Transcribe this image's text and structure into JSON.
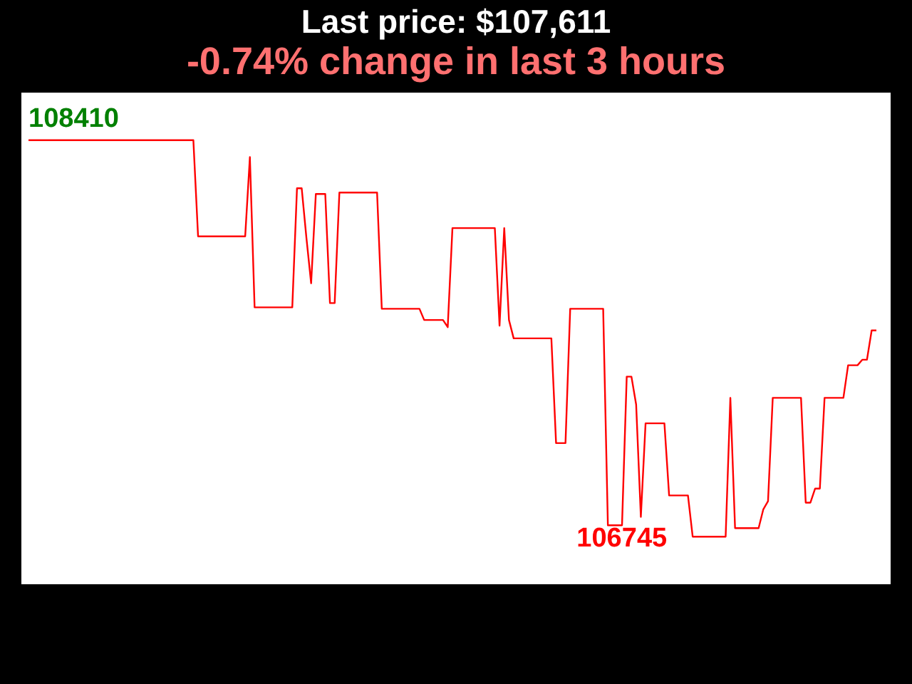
{
  "chart_data": {
    "type": "line",
    "title": "Last price: $107,611",
    "subtitle": "-0.74% change in last 3 hours",
    "categories": [
      null,
      null,
      null,
      null,
      null,
      null,
      null,
      null,
      null,
      null,
      null,
      null,
      null,
      null,
      null,
      null,
      null,
      null,
      null,
      null,
      null,
      null,
      null,
      null,
      null,
      null,
      null,
      null,
      null,
      null,
      null,
      null,
      null,
      null,
      null,
      null,
      null,
      null,
      null,
      null,
      null,
      null,
      null,
      null,
      null,
      null,
      null,
      null,
      null,
      null,
      null,
      null,
      null,
      null,
      null,
      null,
      null,
      null,
      null,
      null,
      null,
      null,
      null,
      null,
      null,
      null,
      null,
      null,
      null,
      null,
      null,
      null,
      null,
      null,
      null,
      null,
      null,
      null,
      null,
      null,
      null,
      null,
      null,
      null,
      null,
      null,
      null,
      null,
      null,
      null,
      null,
      null,
      null,
      null,
      null,
      null,
      null,
      null,
      null,
      null,
      null,
      null,
      null,
      null,
      null,
      null,
      null,
      null,
      null,
      null,
      null,
      null,
      null,
      null,
      null,
      null,
      null,
      null,
      null,
      null,
      null,
      null,
      null,
      null,
      null,
      null,
      null,
      null,
      null,
      null,
      null,
      null,
      null,
      null,
      null,
      null,
      null,
      null,
      null,
      null,
      null,
      null,
      null,
      null,
      null,
      null,
      null,
      null,
      null,
      null,
      null,
      null,
      null,
      null,
      null,
      null,
      null,
      null,
      null,
      null,
      null,
      null,
      null,
      null,
      null,
      null,
      null,
      null,
      null,
      null,
      null,
      null,
      null,
      null,
      null,
      null,
      null,
      null,
      null,
      null,
      null
    ],
    "series": [
      {
        "color": "#ff0000",
        "values": [
          108410,
          108410,
          108410,
          108410,
          108410,
          108410,
          108410,
          108410,
          108410,
          108410,
          108410,
          108410,
          108410,
          108410,
          108410,
          108410,
          108410,
          108410,
          108410,
          108410,
          108410,
          108410,
          108410,
          108410,
          108410,
          108410,
          108410,
          108410,
          108410,
          108410,
          108410,
          108410,
          108410,
          108410,
          108410,
          108410,
          108006,
          108006,
          108006,
          108006,
          108006,
          108006,
          108006,
          108006,
          108006,
          108006,
          108006,
          108339,
          107708,
          107708,
          107708,
          107708,
          107708,
          107708,
          107708,
          107708,
          107708,
          108208,
          108208,
          108000,
          107809,
          108184,
          108184,
          108184,
          107726,
          107726,
          108190,
          108190,
          108190,
          108190,
          108190,
          108190,
          108190,
          108190,
          108190,
          107702,
          107702,
          107702,
          107702,
          107702,
          107702,
          107702,
          107702,
          107702,
          107655,
          107655,
          107655,
          107655,
          107655,
          107625,
          108041,
          108041,
          108041,
          108041,
          108041,
          108041,
          108041,
          108041,
          108041,
          108041,
          107631,
          108041,
          107655,
          107578,
          107578,
          107578,
          107578,
          107578,
          107578,
          107578,
          107578,
          107578,
          107138,
          107138,
          107138,
          107702,
          107702,
          107702,
          107702,
          107702,
          107702,
          107702,
          107702,
          106793,
          106793,
          106793,
          106793,
          107417,
          107417,
          107300,
          106828,
          107221,
          107221,
          107221,
          107221,
          107221,
          106918,
          106918,
          106918,
          106918,
          106918,
          106745,
          106745,
          106745,
          106745,
          106745,
          106745,
          106745,
          106745,
          107328,
          106781,
          106781,
          106781,
          106781,
          106781,
          106781,
          106860,
          106894,
          107328,
          107328,
          107328,
          107328,
          107328,
          107328,
          107328,
          106888,
          106888,
          106947,
          106947,
          107328,
          107328,
          107328,
          107328,
          107328,
          107465,
          107465,
          107465,
          107488,
          107488,
          107611,
          107611
        ],
        "value_labels": [
          "108410",
          null,
          null,
          null,
          null,
          null,
          null,
          null,
          null,
          null,
          null,
          null,
          null,
          null,
          null,
          null,
          null,
          null,
          null,
          null,
          null,
          null,
          null,
          null,
          null,
          null,
          null,
          null,
          null,
          null,
          null,
          null,
          null,
          null,
          null,
          null,
          null,
          null,
          null,
          null,
          null,
          null,
          null,
          null,
          null,
          null,
          null,
          null,
          null,
          null,
          null,
          null,
          null,
          null,
          null,
          null,
          null,
          null,
          null,
          null,
          null,
          null,
          null,
          null,
          null,
          null,
          null,
          null,
          null,
          null,
          null,
          null,
          null,
          null,
          null,
          null,
          null,
          null,
          null,
          null,
          null,
          null,
          null,
          null,
          null,
          null,
          null,
          null,
          null,
          null,
          null,
          null,
          null,
          null,
          null,
          null,
          null,
          null,
          null,
          null,
          null,
          null,
          null,
          null,
          null,
          null,
          null,
          null,
          null,
          null,
          null,
          null,
          null,
          null,
          null,
          null,
          null,
          null,
          null,
          null,
          null,
          null,
          null,
          null,
          null,
          null,
          null,
          null,
          null,
          null,
          null,
          null,
          null,
          null,
          null,
          null,
          null,
          null,
          null,
          null,
          null,
          "106745",
          null,
          null,
          null,
          null,
          null,
          null,
          null,
          null,
          null,
          null,
          null,
          null,
          null,
          null,
          null,
          null,
          null,
          null,
          null,
          null,
          null,
          null,
          null,
          null,
          null,
          null,
          null,
          null,
          null,
          null,
          null,
          null,
          null,
          null,
          null,
          null,
          null,
          null,
          null
        ]
      }
    ],
    "marker": "none",
    "legend": false,
    "tick_labels": false
  }
}
